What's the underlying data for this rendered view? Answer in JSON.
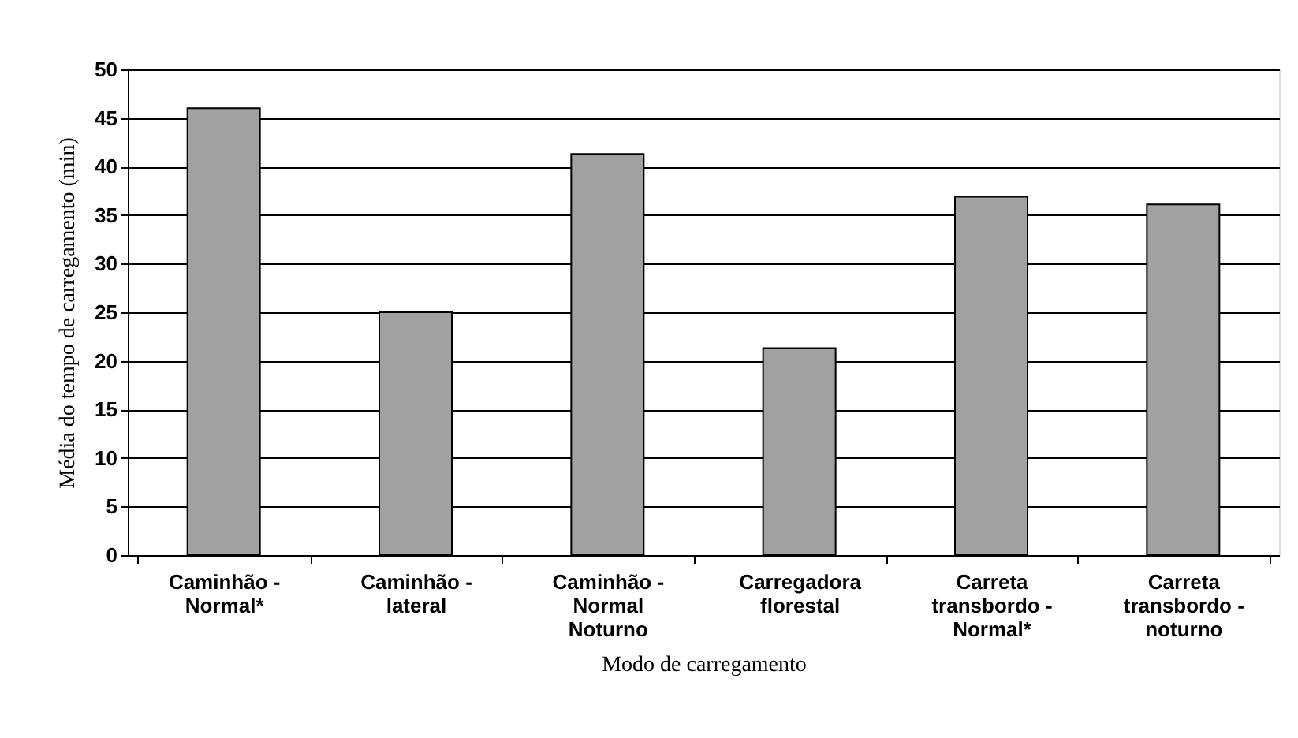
{
  "chart_data": {
    "type": "bar",
    "categories": [
      "Caminhão - Normal*",
      "Caminhão - lateral",
      "Caminhão - Normal Noturno",
      "Carregadora florestal",
      "Carreta transbordo - Normal*",
      "Carreta transbordo - noturno"
    ],
    "values": [
      46,
      25,
      41.3,
      21.3,
      36.9,
      36.1
    ],
    "color": "#a0a0a0",
    "xlabel": "Modo de carregamento",
    "ylabel": "Média do tempo de carregamento (min)",
    "ylim": [
      0,
      50
    ],
    "yticks": [
      0,
      5,
      10,
      15,
      20,
      25,
      30,
      35,
      40,
      45,
      50
    ],
    "grid": "y"
  }
}
